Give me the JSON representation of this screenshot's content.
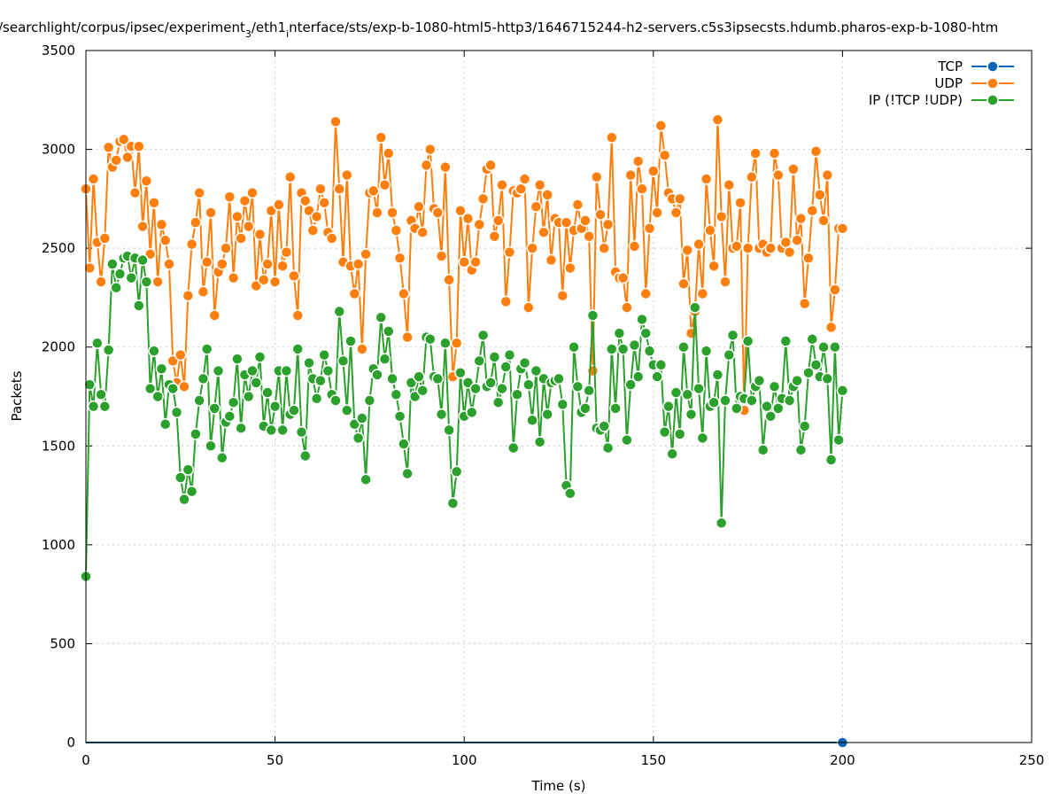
{
  "chart_data": {
    "type": "line",
    "title_parts": [
      "/searchlight/corpus/ipsec/experiment",
      "3",
      "/eth1",
      "i",
      "nterface/sts/exp-b-1080-html5-http3/1646715244-h2-servers.c5s3ipsecsts.hdumb.pharos-exp-b-1080-htm"
    ],
    "xlabel": "Time (s)",
    "ylabel": "Packets",
    "xlim": [
      0,
      250
    ],
    "ylim": [
      0,
      3500
    ],
    "xticks": [
      0,
      50,
      100,
      150,
      200,
      250
    ],
    "yticks": [
      0,
      500,
      1000,
      1500,
      2000,
      2500,
      3000,
      3500
    ],
    "grid": true,
    "legend_position": "top-right",
    "x_start": 0,
    "x_step": 1,
    "series": [
      {
        "name": "TCP",
        "color": "#0a64b4",
        "marker_only_last": true,
        "values": [
          0,
          0,
          0,
          0,
          0,
          0,
          0,
          0,
          0,
          0,
          0,
          0,
          0,
          0,
          0,
          0,
          0,
          0,
          0,
          0,
          0,
          0,
          0,
          0,
          0,
          0,
          0,
          0,
          0,
          0,
          0,
          0,
          0,
          0,
          0,
          0,
          0,
          0,
          0,
          0,
          0,
          0,
          0,
          0,
          0,
          0,
          0,
          0,
          0,
          0,
          0,
          0,
          0,
          0,
          0,
          0,
          0,
          0,
          0,
          0,
          0,
          0,
          0,
          0,
          0,
          0,
          0,
          0,
          0,
          0,
          0,
          0,
          0,
          0,
          0,
          0,
          0,
          0,
          0,
          0,
          0,
          0,
          0,
          0,
          0,
          0,
          0,
          0,
          0,
          0,
          0,
          0,
          0,
          0,
          0,
          0,
          0,
          0,
          0,
          0,
          0,
          0,
          0,
          0,
          0,
          0,
          0,
          0,
          0,
          0,
          0,
          0,
          0,
          0,
          0,
          0,
          0,
          0,
          0,
          0,
          0,
          0,
          0,
          0,
          0,
          0,
          0,
          0,
          0,
          0,
          0,
          0,
          0,
          0,
          0,
          0,
          0,
          0,
          0,
          0,
          0,
          0,
          0,
          0,
          0,
          0,
          0,
          0,
          0,
          0,
          0,
          0,
          0,
          0,
          0,
          0,
          0,
          0,
          0,
          0,
          0,
          0,
          0,
          0,
          0,
          0,
          0,
          0,
          0,
          0,
          0,
          0,
          0,
          0,
          0,
          0,
          0,
          0,
          0,
          0,
          0,
          0,
          0,
          0,
          0,
          0,
          0,
          0,
          0,
          0,
          0,
          0,
          0,
          0,
          0,
          0,
          0,
          0,
          0,
          0,
          0
        ]
      },
      {
        "name": "UDP",
        "color": "#ff7f0e",
        "values": [
          2800,
          2400,
          2850,
          2530,
          2330,
          2550,
          3010,
          2910,
          2945,
          3040,
          3050,
          2960,
          3015,
          2780,
          3015,
          2610,
          2840,
          2470,
          2730,
          2330,
          2620,
          2540,
          2420,
          1930,
          1820,
          1960,
          1800,
          2260,
          2520,
          2630,
          2780,
          2280,
          2430,
          2680,
          2160,
          2380,
          2420,
          2500,
          2760,
          2350,
          2660,
          2550,
          2740,
          2610,
          2780,
          2310,
          2570,
          2340,
          2420,
          2690,
          2330,
          2720,
          2410,
          2480,
          2860,
          2360,
          2160,
          2780,
          2740,
          2690,
          2590,
          2660,
          2800,
          2730,
          2580,
          2550,
          3140,
          2800,
          2430,
          2870,
          2410,
          2270,
          2420,
          1990,
          2470,
          2780,
          2790,
          2680,
          3060,
          2820,
          2980,
          2680,
          2590,
          2450,
          2270,
          2050,
          2640,
          2600,
          2710,
          2580,
          2920,
          3000,
          2700,
          2680,
          2460,
          2910,
          2340,
          1850,
          2020,
          2690,
          2430,
          2650,
          2390,
          2430,
          2620,
          2750,
          2900,
          2920,
          2560,
          2640,
          2820,
          2230,
          2480,
          2790,
          2780,
          2800,
          2850,
          2200,
          2500,
          2710,
          2820,
          2580,
          2770,
          2440,
          2650,
          2630,
          2260,
          2630,
          2400,
          2590,
          2720,
          2600,
          2640,
          2560,
          1880,
          2860,
          2670,
          2500,
          2620,
          3060,
          2380,
          2350,
          2350,
          2200,
          2870,
          2510,
          2940,
          2800,
          2270,
          2600,
          2890,
          2680,
          3120,
          2970,
          2780,
          2750,
          2680,
          2750,
          2320,
          2490,
          2070,
          2180,
          2520,
          2270,
          2850,
          2590,
          2410,
          3150,
          2660,
          2330,
          2820,
          2500,
          2510,
          2730,
          1680,
          2500,
          2860,
          2980,
          2500,
          2520,
          2480,
          2500,
          2980,
          2870,
          2500,
          2530,
          2480,
          2900,
          2540,
          2650,
          2220,
          2450,
          2690,
          2990,
          2770,
          2640,
          2870,
          2100,
          2290,
          2600,
          2600
        ]
      },
      {
        "name": "IP (!TCP  !UDP)",
        "color": "#2ca02c",
        "values": [
          840,
          1810,
          1700,
          2020,
          1760,
          1700,
          1985,
          2420,
          2300,
          2370,
          2450,
          2460,
          2350,
          2450,
          2210,
          2440,
          2330,
          1790,
          1980,
          1750,
          1890,
          1610,
          1810,
          1790,
          1670,
          1340,
          1230,
          1380,
          1270,
          1560,
          1730,
          1840,
          1990,
          1500,
          1690,
          1880,
          1440,
          1620,
          1650,
          1720,
          1940,
          1590,
          1860,
          1750,
          1880,
          1820,
          1950,
          1600,
          1770,
          1580,
          1700,
          1880,
          1580,
          1880,
          1660,
          1680,
          1990,
          1570,
          1450,
          1920,
          1840,
          1740,
          1830,
          1960,
          1880,
          1760,
          1730,
          2180,
          1930,
          1680,
          2030,
          1610,
          1540,
          1640,
          1330,
          1730,
          1890,
          1860,
          2150,
          1940,
          2080,
          1840,
          1760,
          1650,
          1510,
          1360,
          1820,
          1750,
          1850,
          1780,
          2050,
          2040,
          1850,
          1840,
          1660,
          2020,
          1580,
          1210,
          1370,
          1870,
          1650,
          1820,
          1670,
          1790,
          1930,
          2060,
          1800,
          1820,
          1950,
          1720,
          1790,
          1900,
          1960,
          1490,
          1760,
          1890,
          1920,
          1810,
          1630,
          1880,
          1520,
          1840,
          1660,
          1820,
          1830,
          1840,
          1710,
          1300,
          1260,
          2000,
          1800,
          1670,
          1690,
          1780,
          2160,
          1590,
          1580,
          1600,
          1490,
          1990,
          1690,
          2070,
          1990,
          1530,
          1810,
          2010,
          1850,
          2140,
          2070,
          1980,
          1910,
          1850,
          1910,
          1570,
          1700,
          1460,
          1770,
          1560,
          2000,
          1760,
          1660,
          2200,
          1790,
          1540,
          1980,
          1700,
          1720,
          1860,
          1110,
          1730,
          1960,
          2060,
          1690,
          1750,
          1740,
          2030,
          1730,
          1800,
          1830,
          1480,
          1700,
          1650,
          1800,
          1690,
          1740,
          2030,
          1730,
          1800,
          1830,
          1480,
          1600,
          1870,
          2040,
          1910,
          1850,
          2000,
          1840,
          1430,
          2000,
          1530,
          1780
        ]
      }
    ]
  }
}
